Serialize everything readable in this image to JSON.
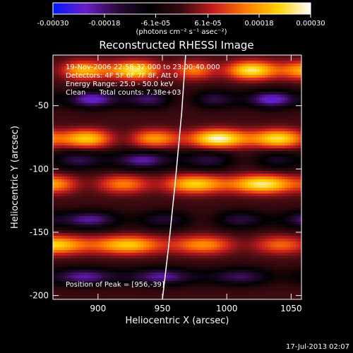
{
  "chart_data": {
    "type": "heatmap",
    "title": "Reconstructed RHESSI Image",
    "xlabel": "Heliocentric X (arcsec)",
    "ylabel": "Heliocentric Y (arcsec)",
    "xlim": [
      865,
      1058
    ],
    "ylim": [
      -203,
      -10
    ],
    "x_ticks": [
      900,
      950,
      1000,
      1050
    ],
    "y_ticks": [
      -50,
      -100,
      -150,
      -200
    ],
    "x_tick_labels": [
      "900",
      "950",
      "1000",
      "1050"
    ],
    "y_tick_labels": [
      "-50",
      "-100",
      "-150",
      "-200"
    ],
    "colorbar": {
      "vmin": -0.0003,
      "vmax": 0.0003,
      "ticks": [
        -0.0003,
        -0.00018,
        -6.1e-05,
        6.1e-05,
        0.00018,
        0.0003
      ],
      "tick_labels": [
        "-0.00030",
        "-0.00018",
        "-6.1e-05",
        "6.1e-05",
        "0.00018",
        "0.00030"
      ],
      "units_label": "(photons cm⁻² s⁻¹ asec⁻²)",
      "colors": [
        "#0018ff",
        "#6a1ec8",
        "#2a0a3a",
        "#000000",
        "#3a0a10",
        "#c81e1e",
        "#ff7a00",
        "#ffd200",
        "#ffffff"
      ]
    },
    "annotations": [
      "19-Nov-2006 22:58:32.000 to 23:00:40.000",
      "Detectors: 4F 5F 6F 7F 8F, Att 0",
      "Energy Range: 25.0 - 50.0 keV",
      "Clean      Total counts: 7.38e+03",
      "Position of Peak = [956,-39]"
    ],
    "peak": {
      "x": 956,
      "y": -39
    },
    "limb_curve": {
      "x": [
        950,
        955,
        960,
        965,
        968
      ],
      "y": [
        -203,
        -160,
        -110,
        -55,
        -10
      ]
    },
    "marker": {
      "x": 997,
      "y": -139
    },
    "image_bands": [
      {
        "y": -22,
        "sign": 1,
        "amp": 0.9
      },
      {
        "y": -45,
        "sign": -1,
        "amp": 0.8
      },
      {
        "y": -76,
        "sign": 1,
        "amp": 1.0
      },
      {
        "y": -93,
        "sign": -1,
        "amp": 0.7
      },
      {
        "y": -112,
        "sign": 1,
        "amp": 0.9
      },
      {
        "y": -140,
        "sign": -1,
        "amp": 0.8
      },
      {
        "y": -160,
        "sign": 1,
        "amp": 0.8
      },
      {
        "y": -185,
        "sign": -1,
        "amp": 0.7
      }
    ],
    "grid": false
  },
  "footer": {
    "timestamp": "17-Jul-2013 02:07"
  }
}
